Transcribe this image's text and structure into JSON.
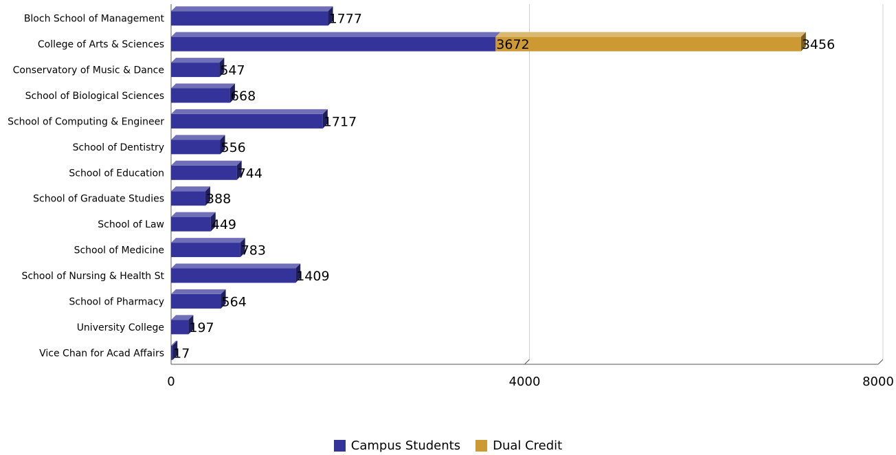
{
  "chart_data": {
    "type": "bar",
    "orientation": "horizontal",
    "stacked": true,
    "categories": [
      "Bloch School of Management",
      "College of Arts & Sciences",
      "Conservatory of Music & Dance",
      "School of Biological Sciences",
      "School of Computing & Engineer",
      "School of Dentistry",
      "School of Education",
      "School of Graduate Studies",
      "School of Law",
      "School of Medicine",
      "School of Nursing & Health St",
      "School of Pharmacy",
      "University College",
      "Vice Chan for Acad Affairs"
    ],
    "series": [
      {
        "name": "Campus Students",
        "color": "#333399",
        "values": [
          1777,
          3672,
          547,
          668,
          1717,
          556,
          744,
          388,
          449,
          783,
          1409,
          564,
          197,
          17
        ]
      },
      {
        "name": "Dual Credit",
        "color": "#cc9933",
        "values": [
          0,
          3456,
          0,
          0,
          0,
          0,
          0,
          0,
          0,
          0,
          0,
          0,
          0,
          0
        ]
      }
    ],
    "xlim": [
      0,
      8000
    ],
    "xticks": [
      "0",
      "4000",
      "8000"
    ],
    "grid": true,
    "legend_position": "bottom"
  }
}
